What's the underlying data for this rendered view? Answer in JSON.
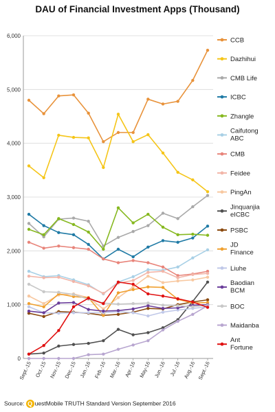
{
  "chart_data": {
    "type": "line",
    "title": "DAU of Financial Investment Apps (Thousand)",
    "xlabel": "",
    "ylabel": "",
    "ylim": [
      0,
      6000
    ],
    "yticks": [
      0,
      1000,
      2000,
      3000,
      4000,
      5000,
      6000
    ],
    "ytick_labels": [
      "0",
      "1,000",
      "2,000",
      "3,000",
      "4,000",
      "5,000",
      "6,000"
    ],
    "grid": true,
    "legend_position": "right",
    "categories": [
      "Sept.-15",
      "Oct.-15",
      "Nov.-15",
      "Dec.-15",
      "Jan.-16",
      "Feb.-16",
      "Mar.-16",
      "Apr.-16",
      "May-16",
      "Jun.-16",
      "Jul.-16",
      "Aug.-16",
      "Sept.-16"
    ],
    "series": [
      {
        "name": "CCB",
        "color": "#e8923a",
        "values": [
          4800,
          4550,
          4880,
          4900,
          4560,
          4030,
          4200,
          4200,
          4820,
          4730,
          4780,
          5170,
          5730
        ]
      },
      {
        "name": "Dazhihui",
        "color": "#f5c518",
        "values": [
          3580,
          3360,
          4150,
          4110,
          4100,
          3550,
          4540,
          4030,
          4160,
          3820,
          3460,
          3320,
          3100
        ]
      },
      {
        "name": "CMB Life",
        "color": "#a9a9a9",
        "values": [
          2510,
          2260,
          2590,
          2610,
          2550,
          2090,
          2250,
          2360,
          2470,
          2700,
          2600,
          2820,
          3030
        ]
      },
      {
        "name": "ICBC",
        "color": "#1f7aa5",
        "values": [
          2680,
          2470,
          2340,
          2300,
          2120,
          1850,
          2030,
          1890,
          2070,
          2190,
          2160,
          2240,
          2460
        ]
      },
      {
        "name": "Zhangle",
        "color": "#86b81f",
        "values": [
          2400,
          2300,
          2600,
          2490,
          2350,
          2030,
          2800,
          2520,
          2680,
          2440,
          2300,
          2310,
          2290
        ]
      },
      {
        "name": "Caifutong ABC",
        "color": "#a8d0e6",
        "values": [
          1620,
          1520,
          1540,
          1460,
          1370,
          1200,
          1420,
          1520,
          1650,
          1640,
          1700,
          1870,
          2020
        ]
      },
      {
        "name": "CMB",
        "color": "#e8847a",
        "values": [
          2160,
          2050,
          2090,
          2060,
          2030,
          1850,
          1780,
          1820,
          1780,
          1700,
          1540,
          1570,
          1620
        ]
      },
      {
        "name": "Feidee",
        "color": "#f2b5a8",
        "values": [
          1530,
          1500,
          1510,
          1430,
          1350,
          1210,
          1400,
          1450,
          1600,
          1620,
          1500,
          1560,
          1580
        ]
      },
      {
        "name": "PingAn",
        "color": "#f8c8a0",
        "values": [
          1160,
          1020,
          1180,
          1200,
          1130,
          920,
          1130,
          1330,
          1530,
          1410,
          1440,
          1460,
          1510
        ]
      },
      {
        "name": "Jinquanjia eICBC",
        "color": "#505050",
        "values": [
          80,
          100,
          230,
          260,
          280,
          330,
          540,
          440,
          480,
          570,
          720,
          1060,
          1420
        ]
      },
      {
        "name": "PSBC",
        "color": "#8b4a0f",
        "values": [
          840,
          780,
          870,
          860,
          840,
          800,
          820,
          860,
          930,
          920,
          1000,
          1050,
          1090
        ]
      },
      {
        "name": "JD Finance",
        "color": "#f0a030",
        "values": [
          1020,
          960,
          1200,
          1150,
          1130,
          800,
          1220,
          1280,
          1330,
          1320,
          1100,
          1030,
          1040
        ]
      },
      {
        "name": "Liuhe",
        "color": "#c0c8e8",
        "values": [
          960,
          850,
          840,
          850,
          850,
          850,
          870,
          850,
          790,
          860,
          900,
          930,
          960
        ]
      },
      {
        "name": "Baodian BCM",
        "color": "#6a3d9a",
        "values": [
          880,
          850,
          1030,
          1040,
          910,
          880,
          890,
          920,
          980,
          930,
          940,
          990,
          1000
        ]
      },
      {
        "name": "BOC",
        "color": "#c8c8c8",
        "values": [
          1380,
          1240,
          1230,
          1190,
          1100,
          1030,
          1010,
          1020,
          1030,
          990,
          980,
          960,
          990
        ]
      },
      {
        "name": "Maidanba",
        "color": "#b8a6d0",
        "values": [
          0,
          0,
          0,
          0,
          70,
          80,
          170,
          250,
          330,
          530,
          690,
          820,
          980
        ]
      },
      {
        "name": "Ant Fortune",
        "color": "#e01010",
        "values": [
          80,
          240,
          520,
          960,
          1120,
          1020,
          1420,
          1380,
          1200,
          1160,
          1110,
          1050,
          950
        ]
      }
    ]
  },
  "source": {
    "label": "Source:",
    "logo_letter": "Q",
    "brand": "uestMobile",
    "rest": " TRUTH Standard Version September 2016"
  }
}
